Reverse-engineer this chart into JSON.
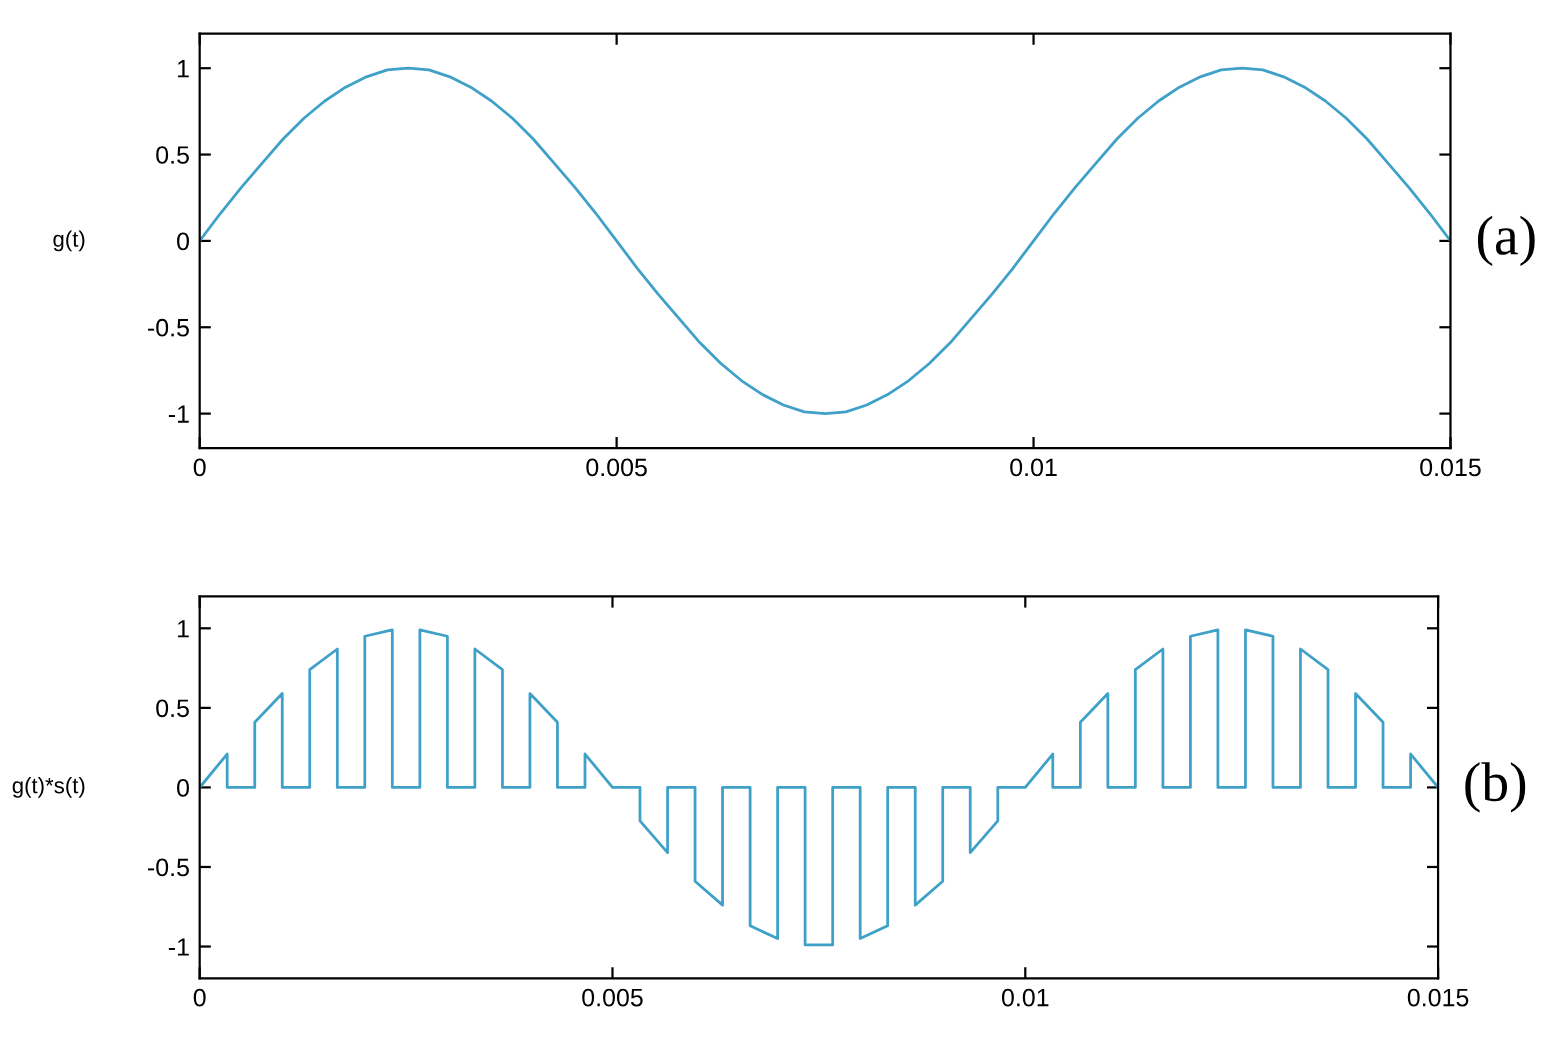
{
  "chart_data": [
    {
      "type": "line",
      "ylabel": "g(t)",
      "annotations": [
        "(a)"
      ],
      "color": "#3fa0c8",
      "xlim": [
        0,
        0.015
      ],
      "ylim": [
        -1.2,
        1.2
      ],
      "xticks": [
        0,
        0.005,
        0.01,
        0.015
      ],
      "yticks": [
        -1,
        -0.5,
        0,
        0.5,
        1
      ],
      "x": [
        0,
        0.00025,
        0.0005,
        0.00075,
        0.001,
        0.00125,
        0.0015,
        0.00175,
        0.002,
        0.00225,
        0.0025,
        0.00275,
        0.003,
        0.00325,
        0.0035,
        0.00375,
        0.004,
        0.00425,
        0.0045,
        0.00475,
        0.005,
        0.00525,
        0.0055,
        0.00575,
        0.006,
        0.00625,
        0.0065,
        0.00675,
        0.007,
        0.00725,
        0.0075,
        0.00775,
        0.008,
        0.00825,
        0.0085,
        0.00875,
        0.009,
        0.00925,
        0.0095,
        0.00975,
        0.01,
        0.01025,
        0.0105,
        0.01075,
        0.011,
        0.01125,
        0.0115,
        0.01175,
        0.012,
        0.01225,
        0.0125,
        0.01275,
        0.013,
        0.01325,
        0.0135,
        0.01375,
        0.014,
        0.01425,
        0.0145,
        0.01475,
        0.015
      ],
      "values": [
        0,
        0.16,
        0.31,
        0.45,
        0.59,
        0.71,
        0.81,
        0.89,
        0.95,
        0.99,
        1,
        0.99,
        0.95,
        0.89,
        0.81,
        0.71,
        0.59,
        0.45,
        0.31,
        0.16,
        0,
        -0.16,
        -0.31,
        -0.45,
        -0.59,
        -0.71,
        -0.81,
        -0.89,
        -0.95,
        -0.99,
        -1,
        -0.99,
        -0.95,
        -0.89,
        -0.81,
        -0.71,
        -0.59,
        -0.45,
        -0.31,
        -0.16,
        0,
        0.16,
        0.31,
        0.45,
        0.59,
        0.71,
        0.81,
        0.89,
        0.95,
        0.99,
        1,
        0.99,
        0.95,
        0.89,
        0.81,
        0.71,
        0.59,
        0.45,
        0.31,
        0.16,
        0
      ]
    },
    {
      "type": "line",
      "ylabel": "g(t)*s(t)",
      "annotations": [
        "(b)"
      ],
      "color": "#3fa0c8",
      "xlim": [
        0,
        0.015
      ],
      "ylim": [
        -1.2,
        1.2
      ],
      "xticks": [
        0,
        0.005,
        0.01,
        0.015
      ],
      "yticks": [
        -1,
        -0.5,
        0,
        0.5,
        1
      ],
      "x": [
        0,
        0.000333,
        0.000333,
        0.000667,
        0.000667,
        0.001,
        0.001,
        0.001333,
        0.001333,
        0.001667,
        0.001667,
        0.002,
        0.002,
        0.002333,
        0.002333,
        0.002667,
        0.002667,
        0.003,
        0.003,
        0.003333,
        0.003333,
        0.003667,
        0.003667,
        0.004,
        0.004,
        0.004333,
        0.004333,
        0.004667,
        0.004667,
        0.005,
        0.005333,
        0.005333,
        0.005667,
        0.005667,
        0.006,
        0.006,
        0.006333,
        0.006333,
        0.006667,
        0.006667,
        0.007,
        0.007,
        0.007333,
        0.007333,
        0.007667,
        0.007667,
        0.008,
        0.008,
        0.008333,
        0.008333,
        0.008667,
        0.008667,
        0.009,
        0.009,
        0.009333,
        0.009333,
        0.009667,
        0.009667,
        0.01,
        0.010333,
        0.010333,
        0.010667,
        0.010667,
        0.011,
        0.011,
        0.011333,
        0.011333,
        0.011667,
        0.011667,
        0.012,
        0.012,
        0.012333,
        0.012333,
        0.012667,
        0.012667,
        0.013,
        0.013,
        0.013333,
        0.013333,
        0.013667,
        0.013667,
        0.014,
        0.014,
        0.014333,
        0.014333,
        0.014667,
        0.014667,
        0.015
      ],
      "values": [
        0,
        0.21,
        0,
        0,
        0.41,
        0.59,
        0,
        0,
        0.74,
        0.87,
        0,
        0,
        0.95,
        0.99,
        0,
        0,
        0.99,
        0.95,
        0,
        0,
        0.87,
        0.74,
        0,
        0,
        0.59,
        0.41,
        0,
        0,
        0.21,
        0,
        0,
        -0.21,
        -0.41,
        0,
        0,
        -0.59,
        -0.74,
        0,
        0,
        -0.87,
        -0.95,
        0,
        0,
        -0.99,
        -0.99,
        0,
        0,
        -0.95,
        -0.87,
        0,
        0,
        -0.74,
        -0.59,
        0,
        0,
        -0.41,
        -0.21,
        0,
        0,
        0.21,
        0,
        0,
        0.41,
        0.59,
        0,
        0,
        0.74,
        0.87,
        0,
        0,
        0.95,
        0.99,
        0,
        0,
        0.99,
        0.95,
        0,
        0,
        0.87,
        0.74,
        0,
        0,
        0.59,
        0.41,
        0,
        0,
        0.21,
        0
      ]
    }
  ]
}
